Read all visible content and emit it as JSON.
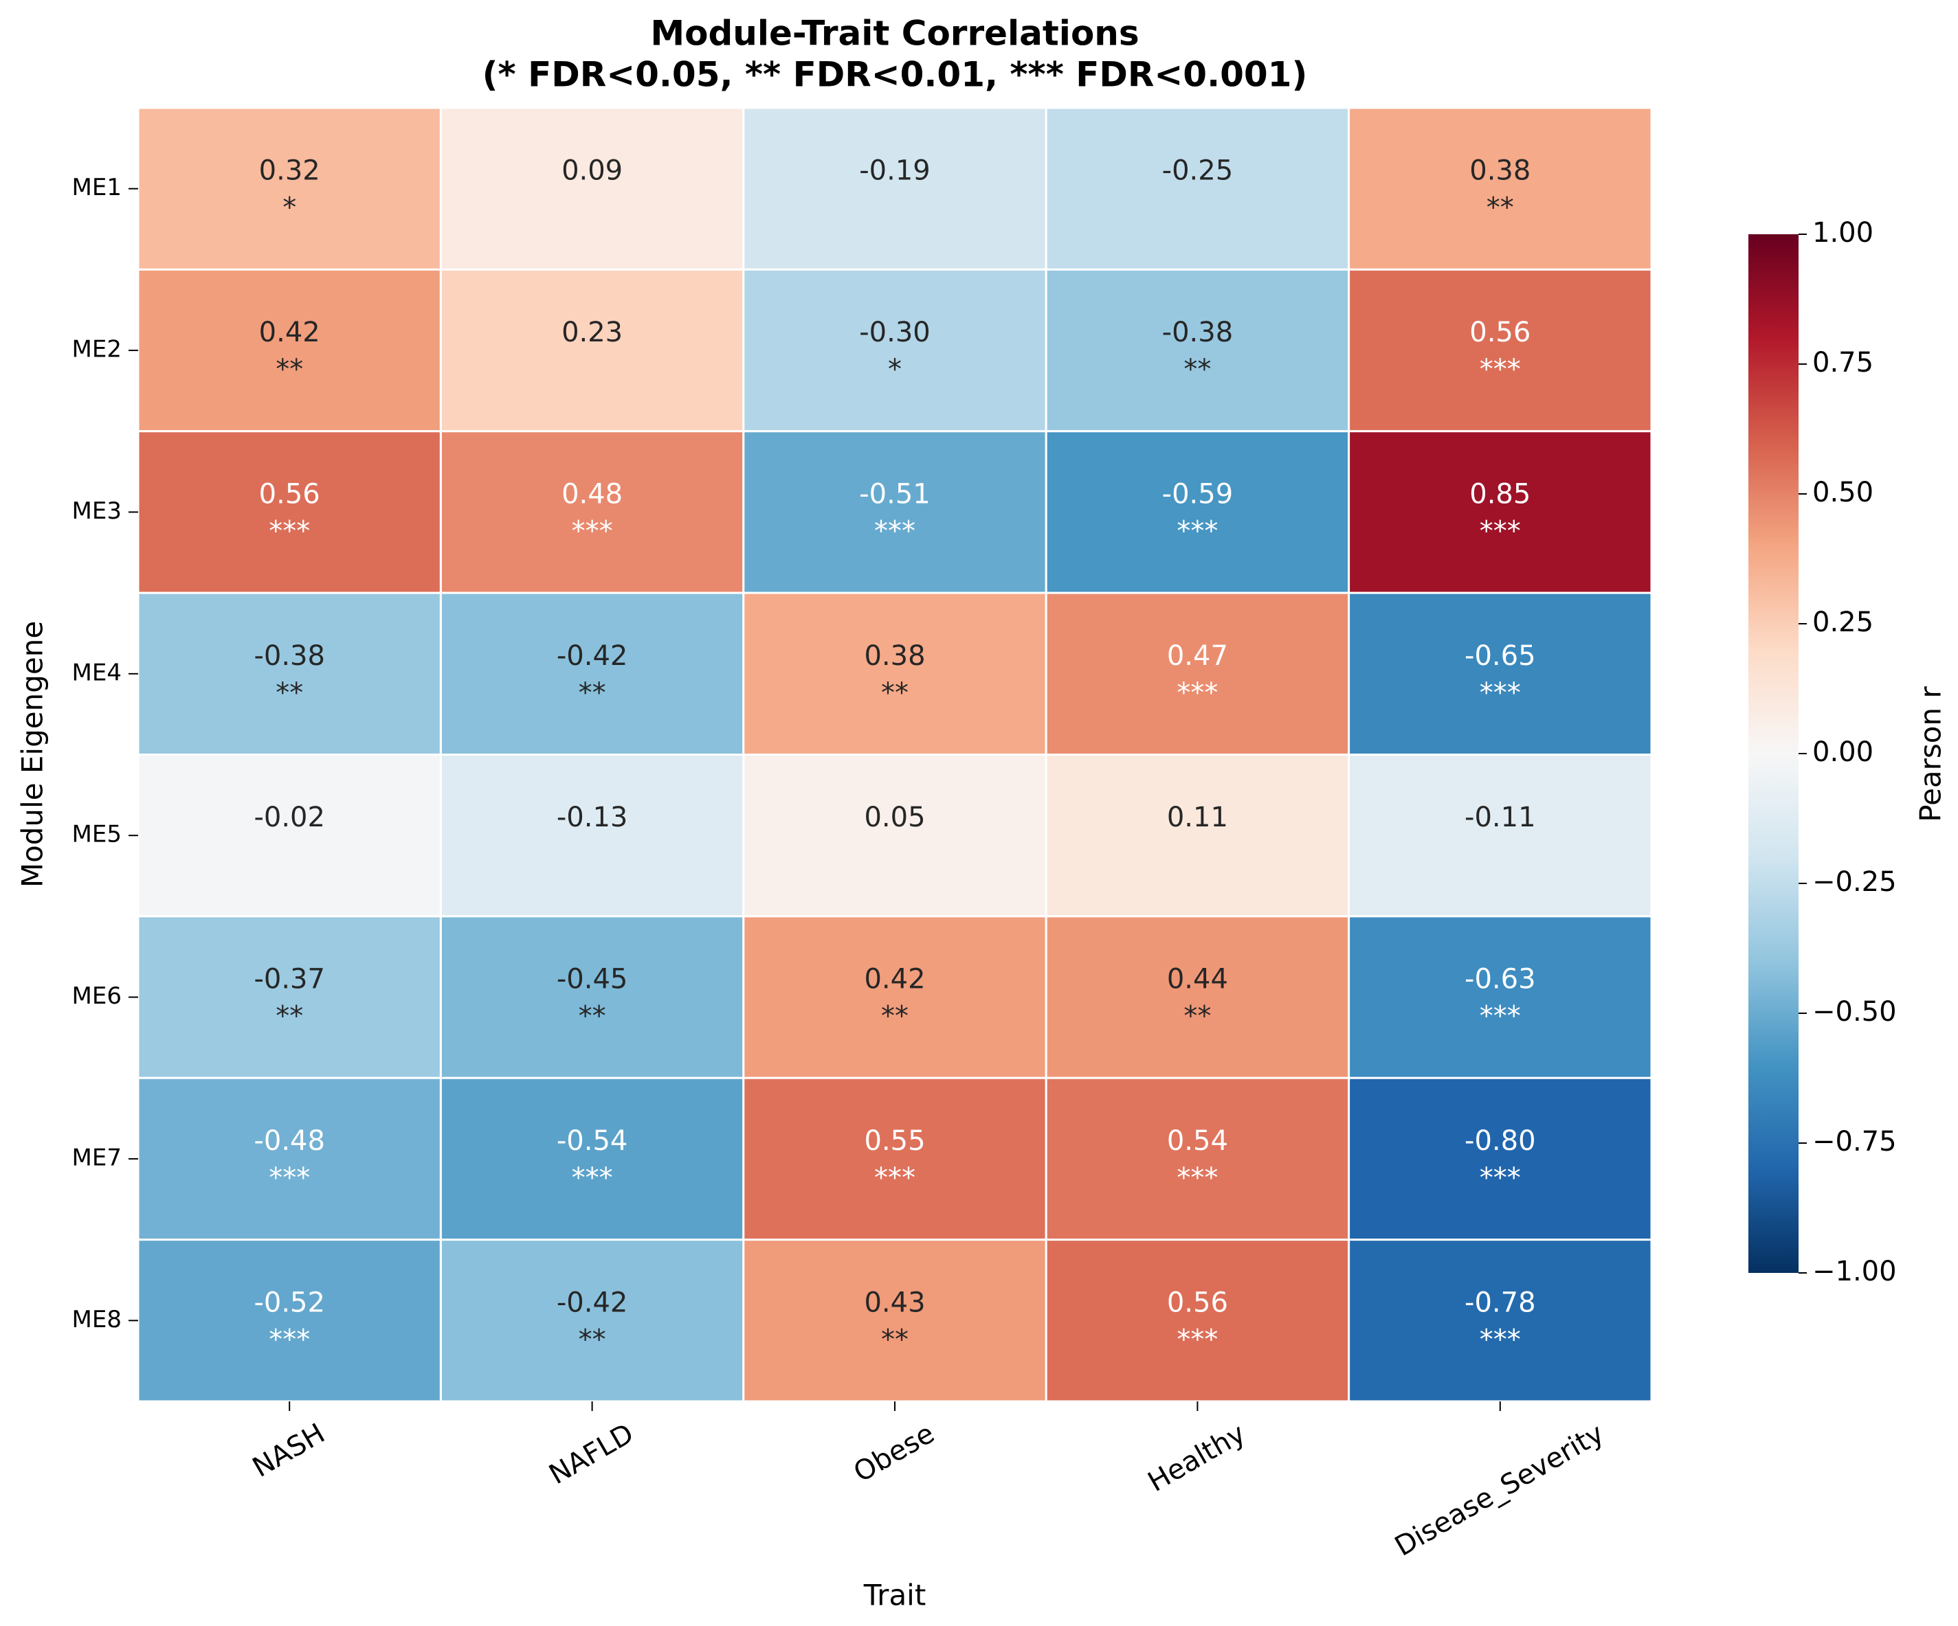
{
  "chart_data": {
    "type": "heatmap",
    "title": "Module-Trait Correlations",
    "subtitle": "(* FDR<0.05, ** FDR<0.01, *** FDR<0.001)",
    "x_label": "Trait",
    "y_label": "Module Eigengene",
    "categories": [
      "NASH",
      "NAFLD",
      "Obese",
      "Healthy",
      "Disease_Severity"
    ],
    "rows": [
      "ME1",
      "ME2",
      "ME3",
      "ME4",
      "ME5",
      "ME6",
      "ME7",
      "ME8"
    ],
    "values": [
      [
        0.32,
        0.09,
        -0.19,
        -0.25,
        0.38
      ],
      [
        0.42,
        0.23,
        -0.3,
        -0.38,
        0.56
      ],
      [
        0.56,
        0.48,
        -0.51,
        -0.59,
        0.85
      ],
      [
        -0.38,
        -0.42,
        0.38,
        0.47,
        -0.65
      ],
      [
        -0.02,
        -0.13,
        0.05,
        0.11,
        -0.11
      ],
      [
        -0.37,
        -0.45,
        0.42,
        0.44,
        -0.63
      ],
      [
        -0.48,
        -0.54,
        0.55,
        0.54,
        -0.8
      ],
      [
        -0.52,
        -0.42,
        0.43,
        0.56,
        -0.78
      ]
    ],
    "value_labels": [
      [
        "0.32",
        "0.09",
        "-0.19",
        "-0.25",
        "0.38"
      ],
      [
        "0.42",
        "0.23",
        "-0.30",
        "-0.38",
        "0.56"
      ],
      [
        "0.56",
        "0.48",
        "-0.51",
        "-0.59",
        "0.85"
      ],
      [
        "-0.38",
        "-0.42",
        "0.38",
        "0.47",
        "-0.65"
      ],
      [
        "-0.02",
        "-0.13",
        "0.05",
        "0.11",
        "-0.11"
      ],
      [
        "-0.37",
        "-0.45",
        "0.42",
        "0.44",
        "-0.63"
      ],
      [
        "-0.48",
        "-0.54",
        "0.55",
        "0.54",
        "-0.80"
      ],
      [
        "-0.52",
        "-0.42",
        "0.43",
        "0.56",
        "-0.78"
      ]
    ],
    "stars": [
      [
        "*",
        null,
        null,
        null,
        "**"
      ],
      [
        "**",
        null,
        "*",
        "**",
        "***"
      ],
      [
        "***",
        "***",
        "***",
        "***",
        "***"
      ],
      [
        "**",
        "**",
        "**",
        "***",
        "***"
      ],
      [
        null,
        null,
        null,
        null,
        null
      ],
      [
        "**",
        "**",
        "**",
        "**",
        "***"
      ],
      [
        "***",
        "***",
        "***",
        "***",
        "***"
      ],
      [
        "***",
        "**",
        "**",
        "***",
        "***"
      ]
    ],
    "colorscale": [
      "#053061",
      "#2166ac",
      "#4393c3",
      "#92c5de",
      "#d1e5f0",
      "#f7f7f7",
      "#fddbc7",
      "#f4a582",
      "#d6604d",
      "#b2182b",
      "#67001f"
    ],
    "zlim": [
      -1,
      1
    ],
    "zticks": [
      {
        "value": 1,
        "label": "1.00"
      },
      {
        "value": 0.75,
        "label": "0.75"
      },
      {
        "value": 0.5,
        "label": "0.50"
      },
      {
        "value": 0.25,
        "label": "0.25"
      },
      {
        "value": 0,
        "label": "0.00"
      },
      {
        "value": -0.25,
        "label": "−0.25"
      },
      {
        "value": -0.5,
        "label": "−0.50"
      },
      {
        "value": -0.75,
        "label": "−0.75"
      },
      {
        "value": -1,
        "label": "−1.00"
      }
    ],
    "colorbar_label": "Pearson r"
  }
}
